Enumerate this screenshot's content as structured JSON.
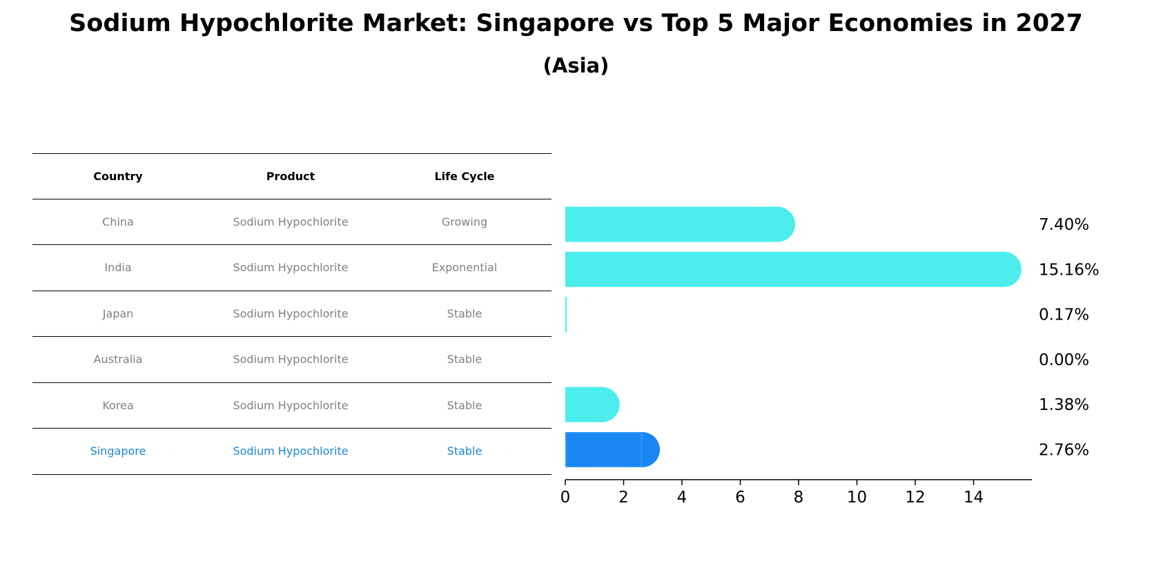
{
  "title": "Sodium Hypochlorite Market: Singapore vs Top 5 Major Economies in 2027",
  "subtitle": "(Asia)",
  "table": {
    "headers": [
      "Country",
      "Product",
      "Life Cycle"
    ],
    "rows": [
      [
        "China",
        "Sodium Hypochlorite",
        "Growing"
      ],
      [
        "India",
        "Sodium Hypochlorite",
        "Exponential"
      ],
      [
        "Japan",
        "Sodium Hypochlorite",
        "Stable"
      ],
      [
        "Australia",
        "Sodium Hypochlorite",
        "Stable"
      ],
      [
        "Korea",
        "Sodium Hypochlorite",
        "Stable"
      ],
      [
        "Singapore",
        "Sodium Hypochlorite",
        "Stable"
      ]
    ],
    "highlight_row": 5
  },
  "chart_data": {
    "type": "bar",
    "orientation": "horizontal",
    "categories": [
      "China",
      "India",
      "Japan",
      "Australia",
      "Korea",
      "Singapore"
    ],
    "values": [
      7.4,
      15.16,
      0.17,
      0.0,
      1.38,
      2.76
    ],
    "value_labels": [
      "7.40%",
      "15.16%",
      "0.17%",
      "0.00%",
      "1.38%",
      "2.76%"
    ],
    "xlim": [
      0,
      16
    ],
    "xticks": [
      0,
      2,
      4,
      6,
      8,
      10,
      12,
      14
    ],
    "xlabel": "",
    "ylabel": "",
    "grid": false,
    "colors": {
      "default": "#4cedec",
      "highlight": "#1a86f4"
    },
    "highlight_index": 5
  }
}
